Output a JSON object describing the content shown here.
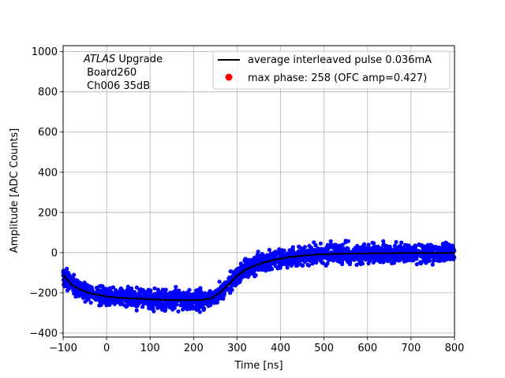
{
  "chart_data": {
    "type": "scatter",
    "title": "",
    "xlabel": "Time [ns]",
    "ylabel": "Amplitude [ADC Counts]",
    "xlim": [
      -100,
      800
    ],
    "ylim": [
      -420,
      1030
    ],
    "grid": true,
    "x_ticks": [
      -100,
      0,
      100,
      200,
      300,
      400,
      500,
      600,
      700,
      800
    ],
    "x_tick_labels": [
      "−100",
      "0",
      "100",
      "200",
      "300",
      "400",
      "500",
      "600",
      "700",
      "800"
    ],
    "y_ticks": [
      -400,
      -200,
      0,
      200,
      400,
      600,
      800,
      1000
    ],
    "y_tick_labels": [
      "−400",
      "−200",
      "0",
      "200",
      "400",
      "600",
      "800",
      "1000"
    ],
    "annotation": {
      "line1_italic": "ATLAS",
      "line1_rest": " Upgrade",
      "line2": " Board260",
      "line3": " Ch006 35dB"
    },
    "legend": {
      "placement": "top-right",
      "entries": [
        {
          "label": "average interleaved pulse 0.036mA",
          "marker": "line",
          "color": "#000000"
        },
        {
          "label": "max phase: 258 (OFC amp=0.427)",
          "marker": "dot",
          "color": "#ff0000"
        }
      ]
    },
    "series": [
      {
        "name": "average interleaved pulse 0.036mA",
        "kind": "line",
        "color": "#000000",
        "x": [
          -100,
          -80,
          -60,
          -40,
          -20,
          0,
          20,
          40,
          60,
          80,
          100,
          120,
          140,
          160,
          180,
          200,
          220,
          240,
          260,
          280,
          300,
          320,
          340,
          360,
          380,
          400,
          420,
          440,
          460,
          480,
          500,
          550,
          600,
          650,
          700,
          750,
          800
        ],
        "y": [
          -110,
          -160,
          -185,
          -200,
          -210,
          -218,
          -223,
          -226,
          -228,
          -230,
          -232,
          -234,
          -235,
          -236,
          -237,
          -237,
          -236,
          -228,
          -200,
          -160,
          -115,
          -85,
          -65,
          -50,
          -38,
          -30,
          -22,
          -17,
          -13,
          -10,
          -8,
          -5,
          -4,
          -3,
          -2,
          -2,
          -2
        ]
      },
      {
        "name": "",
        "kind": "scatter",
        "color": "#0000ff",
        "spread": 38,
        "x": [
          -100,
          -80,
          -60,
          -40,
          -20,
          0,
          20,
          40,
          60,
          80,
          100,
          120,
          140,
          160,
          180,
          200,
          220,
          240,
          260,
          280,
          300,
          320,
          340,
          360,
          380,
          400,
          420,
          440,
          460,
          480,
          500,
          550,
          600,
          650,
          700,
          750,
          800
        ],
        "y": [
          -110,
          -160,
          -185,
          -200,
          -210,
          -218,
          -223,
          -226,
          -228,
          -230,
          -232,
          -234,
          -235,
          -236,
          -237,
          -237,
          -236,
          -228,
          -200,
          -160,
          -115,
          -85,
          -65,
          -50,
          -38,
          -30,
          -22,
          -17,
          -13,
          -10,
          -8,
          -5,
          -4,
          -3,
          -2,
          -2,
          -2
        ]
      }
    ],
    "max_phase_point": {
      "x": null,
      "y": null,
      "color": "#ff0000"
    }
  }
}
